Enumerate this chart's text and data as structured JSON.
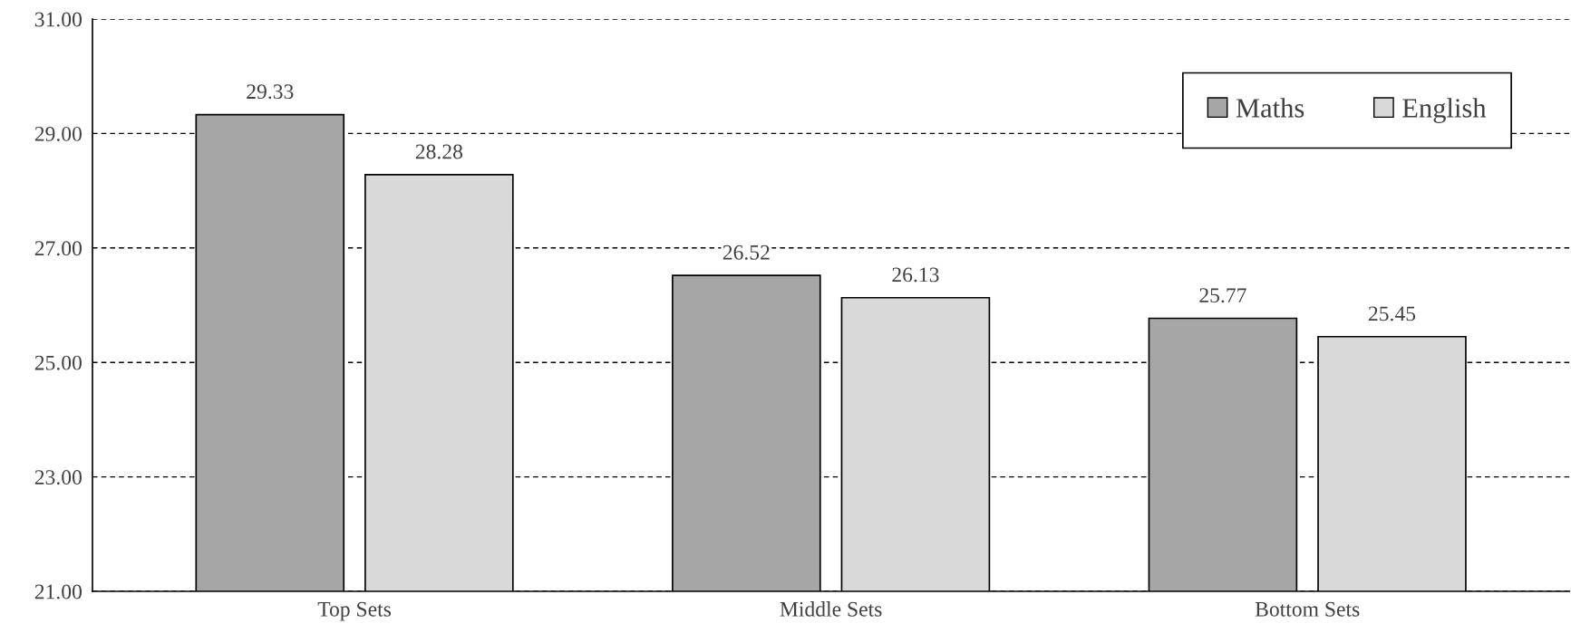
{
  "chart_data": {
    "type": "bar",
    "categories": [
      "Top Sets",
      "Middle Sets",
      "Bottom Sets"
    ],
    "series": [
      {
        "name": "Maths",
        "color": "#a6a6a6",
        "values": [
          29.33,
          26.52,
          25.77
        ]
      },
      {
        "name": "English",
        "color": "#d9d9d9",
        "values": [
          28.28,
          26.13,
          25.45
        ]
      }
    ],
    "ylim": [
      21,
      31
    ],
    "yticks": [
      {
        "value": 21,
        "label": "21.00"
      },
      {
        "value": 23,
        "label": "23.00"
      },
      {
        "value": 25,
        "label": "25.00"
      },
      {
        "value": 27,
        "label": "27.00"
      },
      {
        "value": 29,
        "label": "29.00"
      },
      {
        "value": 31,
        "label": "31.00"
      }
    ],
    "grid": "y",
    "line_style": "dashed",
    "legend": "top right",
    "data_labels": true
  }
}
